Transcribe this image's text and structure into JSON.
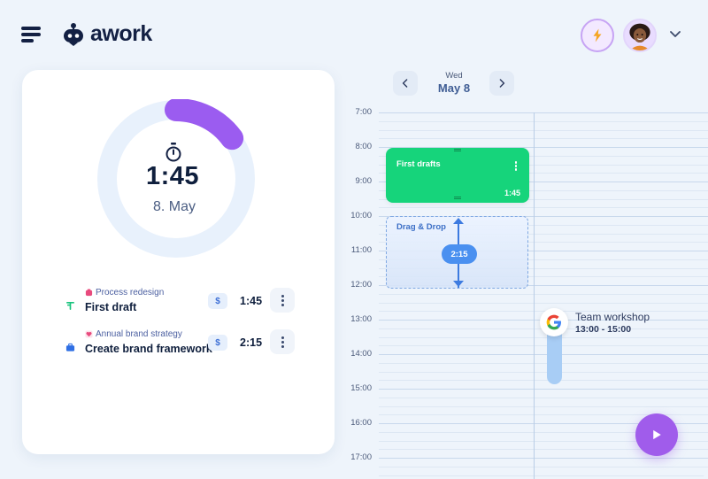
{
  "app": {
    "logo_text": "awork"
  },
  "header": {
    "menu_icon": "menu-icon",
    "quick_action_icon": "lightning-bolt-icon",
    "profile_chevron_icon": "chevron-down-icon"
  },
  "timer": {
    "time": "1:45",
    "date": "8. May",
    "progress_fraction": 0.15,
    "accent_color": "#9b5cf0",
    "ring_color": "#e8f1fc"
  },
  "entries": [
    {
      "project_icon": "task-icon",
      "project_label_icon": "project-icon",
      "project": "Process redesign",
      "title": "First draft",
      "billable_label": "$",
      "duration": "1:45"
    },
    {
      "project_icon": "briefcase-icon",
      "project_label_icon": "heart-icon",
      "project": "Annual brand strategy",
      "title": "Create brand framework",
      "billable_label": "$",
      "duration": "2:15"
    }
  ],
  "calendar": {
    "day_of_week": "Wed",
    "date": "May 8",
    "hours": [
      "7:00",
      "8:00",
      "9:00",
      "10:00",
      "11:00",
      "12:00",
      "13:00",
      "14:00",
      "15:00",
      "16:00",
      "17:00"
    ],
    "events": {
      "first_drafts": {
        "title": "First drafts",
        "duration": "1:45",
        "color": "#16d47b"
      },
      "drag_drop": {
        "title": "Drag & Drop",
        "duration": "2:15"
      },
      "google": {
        "title": "Team workshop",
        "time": "13:00 - 15:00",
        "icon": "google-icon"
      }
    }
  },
  "play_button": {
    "icon": "play-icon",
    "color": "#a05ceb"
  }
}
